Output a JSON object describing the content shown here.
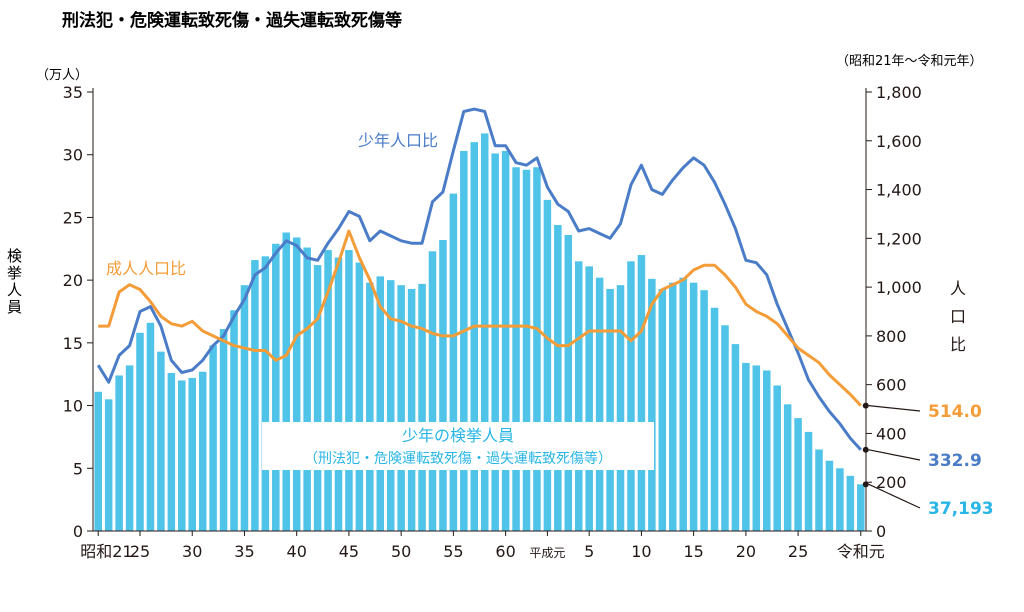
{
  "chart_data": {
    "type": "bar+line",
    "title": "刑法犯・危険運転致死傷・過失運転致死傷等",
    "period_note": "（昭和21年～令和元年）",
    "left_axis": {
      "unit": "（万人）",
      "label": "検挙人員",
      "ticks": [
        "0",
        "5",
        "10",
        "15",
        "20",
        "25",
        "30",
        "35"
      ],
      "range": [
        0,
        35
      ]
    },
    "right_axis": {
      "label": "人口比",
      "ticks": [
        "0",
        "200",
        "400",
        "600",
        "800",
        "1,000",
        "1,200",
        "1,400",
        "1,600",
        "1,800"
      ],
      "range": [
        0,
        1800
      ]
    },
    "x_tick_labels": [
      "昭和21",
      "25",
      "30",
      "35",
      "40",
      "45",
      "50",
      "55",
      "60",
      "平成元",
      "5",
      "10",
      "15",
      "20",
      "25",
      "令和元"
    ],
    "years": [
      "S21",
      "S22",
      "S23",
      "S24",
      "S25",
      "S26",
      "S27",
      "S28",
      "S29",
      "S30",
      "S31",
      "S32",
      "S33",
      "S34",
      "S35",
      "S36",
      "S37",
      "S38",
      "S39",
      "S40",
      "S41",
      "S42",
      "S43",
      "S44",
      "S45",
      "S46",
      "S47",
      "S48",
      "S49",
      "S50",
      "S51",
      "S52",
      "S53",
      "S54",
      "S55",
      "S56",
      "S57",
      "S58",
      "S59",
      "S60",
      "S61",
      "S62",
      "S63",
      "H1",
      "H2",
      "H3",
      "H4",
      "H5",
      "H6",
      "H7",
      "H8",
      "H9",
      "H10",
      "H11",
      "H12",
      "H13",
      "H14",
      "H15",
      "H16",
      "H17",
      "H18",
      "H19",
      "H20",
      "H21",
      "H22",
      "H23",
      "H24",
      "H25",
      "H26",
      "H27",
      "H28",
      "H29",
      "H30",
      "R1"
    ],
    "bar_series": {
      "name": "少年の検挙人員",
      "subname": "（刑法犯・危険運転致死傷・過失運転致死傷等）",
      "color": "#4fc3e8",
      "values": [
        11.1,
        10.5,
        12.4,
        13.2,
        15.8,
        16.6,
        14.3,
        12.6,
        12.0,
        12.2,
        12.7,
        14.8,
        16.1,
        17.6,
        19.6,
        21.6,
        21.9,
        22.9,
        23.8,
        23.4,
        22.6,
        21.2,
        22.4,
        21.8,
        22.4,
        21.4,
        19.8,
        20.3,
        20.0,
        19.6,
        19.3,
        19.7,
        22.3,
        23.2,
        26.9,
        30.3,
        31.0,
        31.7,
        30.1,
        30.3,
        29.0,
        28.8,
        29.0,
        26.4,
        24.4,
        23.6,
        21.5,
        21.1,
        20.2,
        19.3,
        19.6,
        21.5,
        22.0,
        20.1,
        19.3,
        19.8,
        20.2,
        19.8,
        19.2,
        17.8,
        16.4,
        14.9,
        13.4,
        13.2,
        12.8,
        11.6,
        10.1,
        9.0,
        7.9,
        6.5,
        5.6,
        5.0,
        4.4,
        3.72
      ]
    },
    "line_series": [
      {
        "name": "少年人口比",
        "color": "#4a7cc7",
        "values": [
          680,
          610,
          720,
          760,
          900,
          920,
          840,
          700,
          650,
          660,
          700,
          760,
          800,
          880,
          950,
          1050,
          1080,
          1140,
          1190,
          1170,
          1120,
          1110,
          1180,
          1240,
          1310,
          1290,
          1190,
          1230,
          1210,
          1190,
          1180,
          1180,
          1350,
          1390,
          1560,
          1720,
          1730,
          1720,
          1580,
          1580,
          1510,
          1500,
          1530,
          1410,
          1340,
          1310,
          1230,
          1240,
          1220,
          1200,
          1260,
          1420,
          1500,
          1400,
          1380,
          1440,
          1490,
          1530,
          1500,
          1430,
          1340,
          1240,
          1110,
          1100,
          1050,
          930,
          830,
          730,
          620,
          550,
          490,
          440,
          380,
          332.9
        ]
      },
      {
        "name": "成人人口比",
        "color": "#f39c38",
        "values": [
          840,
          840,
          980,
          1010,
          990,
          940,
          880,
          850,
          840,
          860,
          820,
          800,
          780,
          760,
          750,
          740,
          740,
          700,
          720,
          800,
          830,
          870,
          980,
          1100,
          1230,
          1120,
          1030,
          920,
          870,
          860,
          840,
          830,
          810,
          800,
          800,
          820,
          840,
          840,
          840,
          840,
          840,
          840,
          830,
          790,
          760,
          760,
          790,
          820,
          820,
          820,
          820,
          780,
          820,
          930,
          990,
          1010,
          1030,
          1070,
          1090,
          1090,
          1050,
          1000,
          930,
          900,
          880,
          850,
          800,
          750,
          720,
          690,
          640,
          600,
          560,
          514.0
        ]
      }
    ],
    "annotations": [
      {
        "text": "成人人口比",
        "series": "成人人口比"
      },
      {
        "text": "少年人口比",
        "series": "少年人口比"
      }
    ],
    "end_labels": [
      {
        "text": "514.0",
        "color": "#f39c38"
      },
      {
        "text": "332.9",
        "color": "#4a7cc7"
      },
      {
        "text": "37,193",
        "color": "#29b6e6"
      }
    ],
    "right_axis_vertical_label": [
      "人",
      "口",
      "比"
    ]
  }
}
